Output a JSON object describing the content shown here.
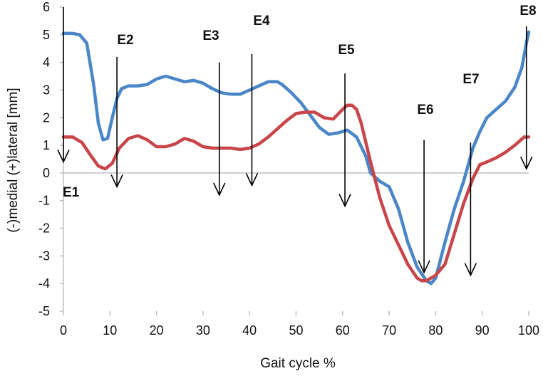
{
  "chart_data": {
    "type": "line",
    "title": "",
    "xlabel": "Gait cycle %",
    "ylabel": "(-)medial (+)lateral [mm]",
    "xlim": [
      0,
      100
    ],
    "ylim": [
      -5,
      6
    ],
    "xticks": [
      "0",
      "10",
      "20",
      "30",
      "40",
      "50",
      "60",
      "70",
      "80",
      "90",
      "100"
    ],
    "yticks": [
      "6",
      "5",
      "4",
      "3",
      "2",
      "1",
      "0",
      "-1",
      "-2",
      "-3",
      "-4",
      "-5"
    ],
    "grid": false,
    "legend": "none",
    "series": [
      {
        "color": "#4a86c8",
        "x": [
          0,
          2,
          3.5,
          5,
          6.5,
          7.5,
          8.5,
          9.5,
          10.5,
          11.5,
          12.5,
          14,
          16,
          18,
          20,
          22,
          24,
          26,
          28,
          30,
          32,
          34,
          36,
          38,
          40,
          42,
          44,
          46,
          47,
          49,
          51,
          53,
          55,
          57,
          59,
          61,
          63,
          65,
          66,
          68,
          70,
          72,
          74,
          76,
          78,
          79,
          80,
          82,
          84,
          86,
          87,
          88,
          89.5,
          91,
          93,
          95,
          97,
          98.5,
          99.5,
          100
        ],
        "y": [
          5.05,
          5.05,
          5.0,
          4.7,
          3.2,
          1.8,
          1.2,
          1.25,
          2.0,
          2.7,
          3.05,
          3.15,
          3.15,
          3.2,
          3.4,
          3.5,
          3.4,
          3.3,
          3.35,
          3.25,
          3.05,
          2.9,
          2.85,
          2.85,
          3.0,
          3.15,
          3.3,
          3.3,
          3.2,
          2.9,
          2.55,
          2.1,
          1.65,
          1.4,
          1.45,
          1.55,
          1.3,
          0.6,
          0.0,
          -0.3,
          -0.5,
          -1.3,
          -2.5,
          -3.4,
          -3.9,
          -4.0,
          -3.8,
          -2.5,
          -1.3,
          -0.3,
          0.3,
          0.9,
          1.5,
          2.0,
          2.3,
          2.6,
          3.1,
          3.8,
          4.7,
          5.1
        ]
      },
      {
        "color": "#c8454a",
        "x": [
          0,
          2,
          4,
          6,
          7.5,
          9,
          10.5,
          12,
          14,
          16,
          18,
          20,
          22,
          24,
          26,
          28,
          30,
          32,
          34,
          36,
          38,
          40,
          42,
          44,
          46,
          48,
          50,
          52,
          54,
          56,
          58,
          60,
          61,
          62,
          63,
          64,
          66,
          68,
          70,
          72,
          74,
          76,
          77,
          78,
          80,
          82,
          84,
          86,
          88,
          89.5,
          91,
          93,
          95,
          97,
          99,
          100
        ],
        "y": [
          1.3,
          1.3,
          1.1,
          0.6,
          0.25,
          0.15,
          0.35,
          0.9,
          1.25,
          1.35,
          1.2,
          0.95,
          0.95,
          1.05,
          1.25,
          1.15,
          0.95,
          0.9,
          0.9,
          0.9,
          0.85,
          0.9,
          1.05,
          1.3,
          1.6,
          1.9,
          2.15,
          2.2,
          2.2,
          2.0,
          1.95,
          2.3,
          2.45,
          2.45,
          2.3,
          1.8,
          0.4,
          -0.9,
          -1.9,
          -2.6,
          -3.3,
          -3.8,
          -3.9,
          -3.9,
          -3.7,
          -3.3,
          -2.2,
          -1.1,
          -0.2,
          0.3,
          0.4,
          0.55,
          0.75,
          1.0,
          1.3,
          1.3
        ]
      }
    ],
    "events": [
      {
        "label": "E1",
        "x": 0,
        "y_start": 6.0,
        "y_end": 0.4
      },
      {
        "label": "E2",
        "x": 11.5,
        "y_start": 4.2,
        "y_end": -0.5
      },
      {
        "label": "E3",
        "x": 33.5,
        "y_start": 4.0,
        "y_end": -0.8
      },
      {
        "label": "E4",
        "x": 40.5,
        "y_start": 4.3,
        "y_end": -0.45
      },
      {
        "label": "E5",
        "x": 60.5,
        "y_start": 3.6,
        "y_end": -1.2
      },
      {
        "label": "E6",
        "x": 77.5,
        "y_start": 1.2,
        "y_end": -3.6
      },
      {
        "label": "E7",
        "x": 87.5,
        "y_start": 1.1,
        "y_end": -3.7
      },
      {
        "label": "E8",
        "x": 99.5,
        "y_start": 5.3,
        "y_end": 0.15
      }
    ]
  }
}
